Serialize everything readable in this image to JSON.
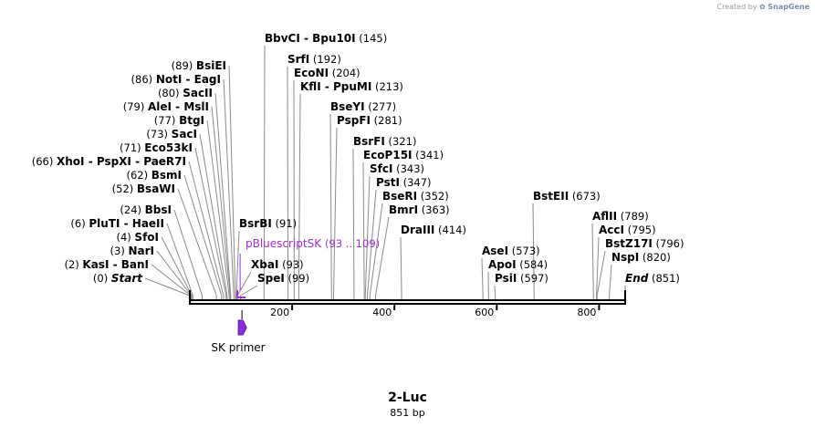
{
  "credit": {
    "prefix": "Created by",
    "brand": "SnapGene"
  },
  "map": {
    "name": "2-Luc",
    "length": "851 bp",
    "length_bp": 851
  },
  "sites": [
    {
      "name": "Start",
      "pos": "(0)",
      "bp": 0,
      "italic": true
    },
    {
      "name": "KasI  - BanI",
      "pos": "(2)",
      "bp": 2
    },
    {
      "name": "NarI",
      "pos": "(3)",
      "bp": 3
    },
    {
      "name": "SfoI",
      "pos": "(4)",
      "bp": 4
    },
    {
      "name": "PluTI  - HaeII",
      "pos": "(6)",
      "bp": 6
    },
    {
      "name": "BbsI",
      "pos": "(24)",
      "bp": 24
    },
    {
      "name": "BsaWI",
      "pos": "(52)",
      "bp": 52
    },
    {
      "name": "BsmI",
      "pos": "(62)",
      "bp": 62
    },
    {
      "name": "XhoI  - PspXI  - PaeR7I",
      "pos": "(66)",
      "bp": 66
    },
    {
      "name": "Eco53kI",
      "pos": "(71)",
      "bp": 71
    },
    {
      "name": "SacI",
      "pos": "(73)",
      "bp": 73
    },
    {
      "name": "BtgI",
      "pos": "(77)",
      "bp": 77
    },
    {
      "name": "AleI  - MslI",
      "pos": "(79)",
      "bp": 79
    },
    {
      "name": "SacII",
      "pos": "(80)",
      "bp": 80
    },
    {
      "name": "NotI  - EagI",
      "pos": "(86)",
      "bp": 86
    },
    {
      "name": "BsiEI",
      "pos": "(89)",
      "bp": 89
    },
    {
      "name": "BsrBI",
      "pos": "(91)",
      "bp": 91
    },
    {
      "name": "XbaI",
      "pos": "(93)",
      "bp": 93
    },
    {
      "name": "SpeI",
      "pos": "(99)",
      "bp": 99
    },
    {
      "name": "BbvCI  - Bpu10I",
      "pos": "(145)",
      "bp": 145
    },
    {
      "name": "SrfI",
      "pos": "(192)",
      "bp": 192
    },
    {
      "name": "EcoNI",
      "pos": "(204)",
      "bp": 204
    },
    {
      "name": "KflI  - PpuMI",
      "pos": "(213)",
      "bp": 213
    },
    {
      "name": "BseYI",
      "pos": "(277)",
      "bp": 277
    },
    {
      "name": "PspFI",
      "pos": "(281)",
      "bp": 281
    },
    {
      "name": "BsrFI",
      "pos": "(321)",
      "bp": 321
    },
    {
      "name": "EcoP15I",
      "pos": "(341)",
      "bp": 341
    },
    {
      "name": "SfcI",
      "pos": "(343)",
      "bp": 343
    },
    {
      "name": "PstI",
      "pos": "(347)",
      "bp": 347
    },
    {
      "name": "BseRI",
      "pos": "(352)",
      "bp": 352
    },
    {
      "name": "BmrI",
      "pos": "(363)",
      "bp": 363
    },
    {
      "name": "DraIII",
      "pos": "(414)",
      "bp": 414
    },
    {
      "name": "AseI",
      "pos": "(573)",
      "bp": 573
    },
    {
      "name": "ApoI",
      "pos": "(584)",
      "bp": 584
    },
    {
      "name": "PsiI",
      "pos": "(597)",
      "bp": 597
    },
    {
      "name": "BstEII",
      "pos": "(673)",
      "bp": 673
    },
    {
      "name": "AflII",
      "pos": "(789)",
      "bp": 789
    },
    {
      "name": "AccI",
      "pos": "(795)",
      "bp": 795
    },
    {
      "name": "BstZ17I",
      "pos": "(796)",
      "bp": 796
    },
    {
      "name": "NspI",
      "pos": "(820)",
      "bp": 820
    },
    {
      "name": "End",
      "pos": "(851)",
      "bp": 851,
      "italic": true
    }
  ],
  "features": [
    {
      "name": "pBluescriptSK",
      "range": "(93 .. 109)",
      "start_bp": 93,
      "end_bp": 109,
      "color": "#9b30d0"
    },
    {
      "name": "SK primer",
      "start_bp": 93,
      "end_bp": 109,
      "color": "#8b2be2"
    }
  ],
  "axis": {
    "ticks": [
      "200",
      "400",
      "600",
      "800"
    ],
    "tick_bp": [
      200,
      400,
      600,
      800
    ]
  }
}
